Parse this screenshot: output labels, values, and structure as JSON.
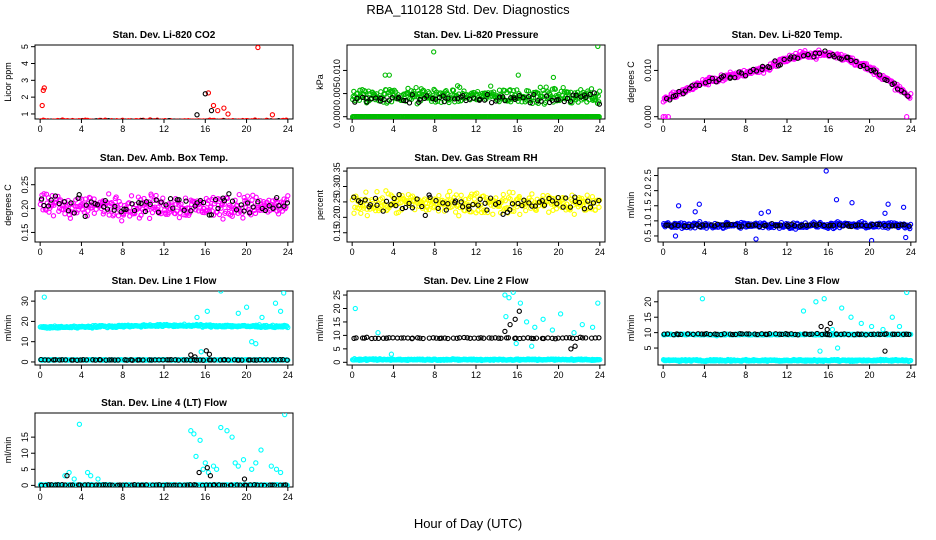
{
  "page": {
    "title": "RBA_110128  Std. Dev. Diagnostics",
    "xlabel": "Hour of Day (UTC)"
  },
  "chart_data": [
    {
      "type": "scatter",
      "title": "Stan. Dev. Li-820 CO2",
      "ylabel": "Licor ppm",
      "xticks": [
        0,
        4,
        8,
        12,
        16,
        20,
        24
      ],
      "yticks": [
        1,
        2,
        3,
        4,
        5
      ],
      "xlim": [
        -0.5,
        24.5
      ],
      "ylim": [
        0.7,
        5.1
      ],
      "series": [
        {
          "color": "#ff0000",
          "base": 0.55,
          "spread": 0.12,
          "outliers": [
            [
              0.2,
              1.5
            ],
            [
              0.4,
              2.55
            ],
            [
              0.3,
              2.4
            ],
            [
              16.3,
              2.25
            ],
            [
              16.8,
              1.5
            ],
            [
              17.2,
              1.2
            ],
            [
              17.8,
              1.35
            ],
            [
              18.2,
              1.0
            ],
            [
              21.1,
              4.95
            ],
            [
              22.5,
              0.95
            ]
          ]
        },
        {
          "color": "#000000",
          "base": 0.55,
          "spread": 0.08,
          "outliers": [
            [
              16.0,
              2.2
            ],
            [
              15.2,
              0.95
            ],
            [
              16.6,
              1.2
            ]
          ]
        }
      ]
    },
    {
      "type": "scatter",
      "title": "Stan. Dev. Li-820 Pressure",
      "ylabel": "kPa",
      "xticks": [
        0,
        4,
        8,
        12,
        16,
        20,
        24
      ],
      "yticks": [
        0.0,
        0.005,
        0.01
      ],
      "xlim": [
        -0.5,
        24.5
      ],
      "ylim": [
        -0.0005,
        0.0155
      ],
      "series": [
        {
          "color": "#00bb00",
          "base": 0.0,
          "spread": 0.0,
          "outliers": []
        },
        {
          "color": "#00bb00",
          "base": 0.0045,
          "spread": 0.0025,
          "outliers": [
            [
              3.2,
              0.009
            ],
            [
              3.6,
              0.009
            ],
            [
              7.9,
              0.014
            ],
            [
              16.1,
              0.009
            ],
            [
              19.5,
              0.0085
            ],
            [
              23.8,
              0.0152
            ]
          ]
        },
        {
          "color": "#000000",
          "base": 0.004,
          "spread": 0.0018,
          "outliers": []
        }
      ]
    },
    {
      "type": "scatter",
      "title": "Stan. Dev. Li-820 Temp.",
      "ylabel": "degrees C",
      "xticks": [
        0,
        4,
        8,
        12,
        16,
        20,
        24
      ],
      "yticks": [
        0.0,
        0.01
      ],
      "xlim": [
        -0.5,
        24.5
      ],
      "ylim": [
        -0.0005,
        0.0155
      ],
      "curve": [
        [
          0,
          0.0035
        ],
        [
          2,
          0.0055
        ],
        [
          4,
          0.0075
        ],
        [
          6,
          0.0085
        ],
        [
          8,
          0.0095
        ],
        [
          10,
          0.0105
        ],
        [
          12,
          0.0125
        ],
        [
          14,
          0.0135
        ],
        [
          16,
          0.0135
        ],
        [
          18,
          0.0125
        ],
        [
          20,
          0.0105
        ],
        [
          22,
          0.0075
        ],
        [
          24,
          0.004
        ]
      ],
      "series": [
        {
          "color": "#ff00ff",
          "spread": 0.0012,
          "outliers": [
            [
              0.0,
              0.0
            ],
            [
              0.2,
              0.0
            ],
            [
              0.5,
              0.0
            ],
            [
              23.6,
              0.0
            ]
          ]
        },
        {
          "color": "#000000",
          "spread": 0.0009,
          "outliers": []
        }
      ]
    },
    {
      "type": "scatter",
      "title": "Stan. Dev. Amb. Box Temp.",
      "ylabel": "degrees C",
      "xticks": [
        0,
        4,
        8,
        12,
        16,
        20,
        24
      ],
      "yticks": [
        0.15,
        0.2,
        0.25
      ],
      "xlim": [
        -0.5,
        24.5
      ],
      "ylim": [
        0.13,
        0.285
      ],
      "series": [
        {
          "color": "#ff00ff",
          "base": 0.205,
          "spread": 0.035,
          "outliers": []
        },
        {
          "color": "#000000",
          "base": 0.205,
          "spread": 0.03,
          "outliers": []
        }
      ]
    },
    {
      "type": "scatter",
      "title": "Stan. Dev. Gas Stream RH",
      "ylabel": "percent",
      "xticks": [
        0,
        4,
        8,
        12,
        16,
        20,
        24
      ],
      "yticks": [
        0.15,
        0.2,
        0.25,
        0.3,
        0.35
      ],
      "xlim": [
        -0.5,
        24.5
      ],
      "ylim": [
        0.12,
        0.36
      ],
      "series": [
        {
          "color": "#ffff00",
          "base": 0.245,
          "spread": 0.05,
          "outliers": []
        },
        {
          "color": "#000000",
          "base": 0.245,
          "spread": 0.045,
          "outliers": []
        }
      ]
    },
    {
      "type": "scatter",
      "title": "Stan. Dev. Sample Flow",
      "ylabel": "ml/min",
      "xticks": [
        0,
        4,
        8,
        12,
        16,
        20,
        24
      ],
      "yticks": [
        0.5,
        1.0,
        1.5,
        2.0,
        2.5
      ],
      "xlim": [
        -0.5,
        24.5
      ],
      "ylim": [
        0.3,
        2.75
      ],
      "series": [
        {
          "color": "#0000ff",
          "base": 0.85,
          "spread": 0.15,
          "outliers": [
            [
              1.5,
              1.5
            ],
            [
              3.1,
              1.3
            ],
            [
              3.5,
              1.55
            ],
            [
              9.5,
              1.25
            ],
            [
              10.2,
              1.3
            ],
            [
              15.8,
              2.65
            ],
            [
              16.8,
              1.7
            ],
            [
              18.3,
              1.6
            ],
            [
              21.5,
              1.25
            ],
            [
              21.8,
              1.55
            ],
            [
              23.3,
              1.45
            ],
            [
              1.2,
              0.5
            ],
            [
              9.0,
              0.4
            ],
            [
              20.2,
              0.35
            ],
            [
              23.5,
              0.45
            ]
          ]
        },
        {
          "color": "#000000",
          "base": 0.85,
          "spread": 0.07,
          "outliers": []
        }
      ]
    },
    {
      "type": "scatter",
      "title": "Stan. Dev. Line 1 Flow",
      "ylabel": "ml/min",
      "xticks": [
        0,
        4,
        8,
        12,
        16,
        20,
        24
      ],
      "yticks": [
        0,
        10,
        20,
        30
      ],
      "xlim": [
        -0.5,
        24.5
      ],
      "ylim": [
        -1.5,
        35
      ],
      "series": [
        {
          "color": "#00ffff",
          "band": [
            [
              0,
              17
            ],
            [
              12,
              18
            ],
            [
              24,
              17.5
            ]
          ],
          "spread": 0.8,
          "outliers": [
            [
              0.4,
              32
            ],
            [
              15.2,
              22
            ],
            [
              16.2,
              25
            ],
            [
              17.5,
              35
            ],
            [
              19.2,
              24
            ],
            [
              20.0,
              27
            ],
            [
              21.5,
              22
            ],
            [
              22.8,
              29
            ],
            [
              23.3,
              25
            ],
            [
              23.6,
              34
            ],
            [
              20.5,
              10
            ],
            [
              20.9,
              9
            ],
            [
              15.6,
              5
            ]
          ]
        },
        {
          "color": "#00ffff",
          "base": 1.0,
          "spread": 0.2,
          "outliers": []
        },
        {
          "color": "#000000",
          "base": 1.0,
          "spread": 0.2,
          "outliers": [
            [
              14.6,
              3.5
            ],
            [
              16.1,
              5.5
            ],
            [
              16.4,
              3.8
            ],
            [
              15.0,
              2.5
            ]
          ]
        }
      ]
    },
    {
      "type": "scatter",
      "title": "Stan. Dev. Line 2 Flow",
      "ylabel": "ml/min",
      "xticks": [
        0,
        4,
        8,
        12,
        16,
        20,
        24
      ],
      "yticks": [
        0,
        5,
        10,
        15,
        20,
        25
      ],
      "xlim": [
        -0.5,
        24.5
      ],
      "ylim": [
        -1,
        26.5
      ],
      "series": [
        {
          "color": "#00ffff",
          "base": 1.0,
          "spread": 0.4,
          "outliers": [
            [
              0.3,
              20
            ],
            [
              2.5,
              11
            ],
            [
              3.8,
              3
            ],
            [
              14.8,
              25
            ],
            [
              15.2,
              24
            ],
            [
              15.6,
              26
            ],
            [
              16.3,
              22
            ],
            [
              16.9,
              15
            ],
            [
              17.7,
              13
            ],
            [
              18.5,
              16
            ],
            [
              19.4,
              12
            ],
            [
              20.2,
              18
            ],
            [
              21.5,
              11
            ],
            [
              22.3,
              14
            ],
            [
              23.3,
              13
            ],
            [
              23.8,
              22
            ],
            [
              14.9,
              17
            ],
            [
              15.9,
              7
            ],
            [
              17.4,
              6
            ]
          ]
        },
        {
          "color": "#000000",
          "base": 9.0,
          "spread": 0.3,
          "outliers": [
            [
              14.8,
              11.5
            ],
            [
              15.3,
              14
            ],
            [
              15.8,
              16
            ],
            [
              16.2,
              19
            ],
            [
              21.2,
              5
            ],
            [
              21.6,
              6
            ]
          ]
        }
      ]
    },
    {
      "type": "scatter",
      "title": "Stan. Dev. Line 3 Flow",
      "ylabel": "ml/min",
      "xticks": [
        0,
        4,
        8,
        12,
        16,
        20,
        24
      ],
      "yticks": [
        5,
        10,
        15,
        20
      ],
      "xlim": [
        -0.5,
        24.5
      ],
      "ylim": [
        -0.5,
        23.5
      ],
      "series": [
        {
          "color": "#00ffff",
          "base": 1.0,
          "spread": 0.4,
          "outliers": [
            [
              3.8,
              21
            ],
            [
              5.2,
              9
            ],
            [
              13.6,
              17
            ],
            [
              14.8,
              20
            ],
            [
              15.6,
              21
            ],
            [
              16.4,
              11
            ],
            [
              17.3,
              18
            ],
            [
              18.2,
              15
            ],
            [
              19.2,
              13
            ],
            [
              20.2,
              12
            ],
            [
              21.3,
              11
            ],
            [
              22.2,
              15
            ],
            [
              22.9,
              12
            ],
            [
              23.6,
              23
            ],
            [
              15.2,
              4
            ],
            [
              16.9,
              5
            ]
          ]
        },
        {
          "color": "#00ffff",
          "band": [
            [
              0,
              9.4
            ],
            [
              24,
              9.4
            ]
          ],
          "spread": 0.2,
          "outliers": []
        },
        {
          "color": "#000000",
          "base": 9.5,
          "spread": 0.3,
          "outliers": [
            [
              15.3,
              12
            ],
            [
              16.2,
              13
            ],
            [
              21.5,
              4
            ],
            [
              15.9,
              11
            ]
          ]
        }
      ]
    },
    {
      "type": "scatter",
      "title": "Stan. Dev. Line 4 (LT) Flow",
      "ylabel": "ml/min",
      "xticks": [
        0,
        4,
        8,
        12,
        16,
        20,
        24
      ],
      "yticks": [
        0,
        5,
        10,
        15
      ],
      "xlim": [
        -0.5,
        24.5
      ],
      "ylim": [
        -0.5,
        22.5
      ],
      "series": [
        {
          "color": "#00ffff",
          "base": 0.1,
          "spread": 0.2,
          "outliers": [
            [
              3.8,
              19
            ],
            [
              2.4,
              3
            ],
            [
              2.8,
              4
            ],
            [
              3.3,
              2
            ],
            [
              4.6,
              4
            ],
            [
              4.9,
              3
            ],
            [
              5.6,
              2
            ],
            [
              14.6,
              17
            ],
            [
              14.9,
              16
            ],
            [
              15.5,
              14
            ],
            [
              15.1,
              9
            ],
            [
              16.0,
              7
            ],
            [
              16.8,
              6
            ],
            [
              17.5,
              18
            ],
            [
              18.1,
              17
            ],
            [
              18.6,
              15
            ],
            [
              19.7,
              8
            ],
            [
              21.4,
              11
            ],
            [
              22.4,
              6
            ],
            [
              23.7,
              22
            ],
            [
              15.8,
              5
            ],
            [
              16.3,
              4
            ],
            [
              17.1,
              5
            ],
            [
              18.9,
              7
            ],
            [
              19.2,
              6
            ],
            [
              20.5,
              5
            ],
            [
              20.9,
              7
            ],
            [
              22.9,
              5
            ],
            [
              23.3,
              4
            ]
          ]
        },
        {
          "color": "#000000",
          "base": 0.1,
          "spread": 0.15,
          "outliers": [
            [
              2.6,
              3
            ],
            [
              15.4,
              4
            ],
            [
              16.2,
              5.5
            ],
            [
              16.5,
              3
            ],
            [
              19.8,
              2
            ]
          ]
        }
      ]
    }
  ]
}
